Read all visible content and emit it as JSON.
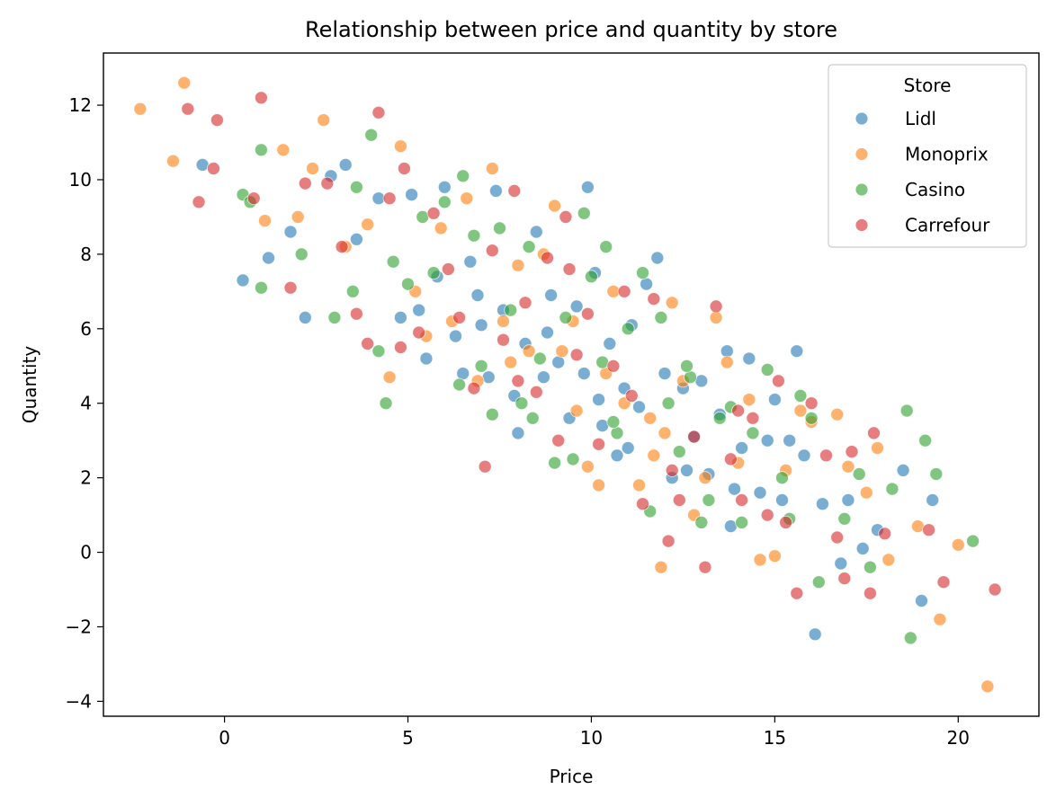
{
  "chart_data": {
    "type": "scatter",
    "title": "Relationship between price and quantity by store",
    "xlabel": "Price",
    "ylabel": "Quantity",
    "xlim": [
      -3.3,
      22.2
    ],
    "ylim": [
      -4.4,
      13.4
    ],
    "xticks": [
      0,
      5,
      10,
      15,
      20
    ],
    "yticks": [
      -4,
      -2,
      0,
      2,
      4,
      6,
      8,
      10,
      12
    ],
    "xtick_labels": [
      "0",
      "5",
      "10",
      "15",
      "20"
    ],
    "ytick_labels": [
      "−4",
      "−2",
      "0",
      "2",
      "4",
      "6",
      "8",
      "10",
      "12"
    ],
    "grid": false,
    "legend": {
      "title": "Store",
      "placement": "top-right"
    },
    "series": [
      {
        "name": "Lidl",
        "color": "#1f77b4",
        "points": [
          [
            -0.6,
            10.4
          ],
          [
            0.5,
            7.3
          ],
          [
            1.2,
            7.9
          ],
          [
            1.8,
            8.6
          ],
          [
            2.2,
            6.3
          ],
          [
            2.9,
            10.1
          ],
          [
            3.3,
            10.4
          ],
          [
            3.6,
            8.4
          ],
          [
            4.2,
            9.5
          ],
          [
            4.8,
            6.3
          ],
          [
            5.1,
            9.6
          ],
          [
            5.3,
            6.5
          ],
          [
            5.5,
            5.2
          ],
          [
            5.8,
            7.4
          ],
          [
            6.0,
            9.8
          ],
          [
            6.3,
            5.8
          ],
          [
            6.5,
            4.8
          ],
          [
            6.7,
            7.8
          ],
          [
            7.0,
            6.1
          ],
          [
            7.2,
            4.7
          ],
          [
            7.4,
            9.7
          ],
          [
            7.6,
            6.5
          ],
          [
            7.9,
            4.2
          ],
          [
            8.0,
            3.2
          ],
          [
            8.2,
            5.6
          ],
          [
            8.5,
            8.6
          ],
          [
            8.7,
            4.7
          ],
          [
            8.9,
            6.9
          ],
          [
            9.1,
            5.1
          ],
          [
            9.4,
            3.6
          ],
          [
            9.6,
            6.6
          ],
          [
            9.8,
            4.8
          ],
          [
            9.9,
            9.8
          ],
          [
            10.1,
            7.5
          ],
          [
            10.3,
            3.4
          ],
          [
            10.5,
            5.6
          ],
          [
            10.7,
            2.6
          ],
          [
            10.9,
            4.4
          ],
          [
            11.1,
            6.1
          ],
          [
            11.3,
            3.9
          ],
          [
            11.5,
            7.2
          ],
          [
            11.8,
            7.9
          ],
          [
            12.0,
            4.8
          ],
          [
            12.2,
            2.0
          ],
          [
            12.5,
            4.4
          ],
          [
            12.8,
            3.1
          ],
          [
            13.0,
            4.6
          ],
          [
            13.2,
            2.1
          ],
          [
            13.5,
            3.7
          ],
          [
            13.7,
            5.4
          ],
          [
            13.9,
            1.7
          ],
          [
            14.1,
            2.8
          ],
          [
            14.3,
            5.2
          ],
          [
            14.6,
            1.6
          ],
          [
            14.8,
            3.0
          ],
          [
            15.0,
            4.1
          ],
          [
            15.2,
            1.4
          ],
          [
            15.4,
            3.0
          ],
          [
            15.6,
            5.4
          ],
          [
            15.8,
            2.6
          ],
          [
            16.1,
            -2.2
          ],
          [
            16.3,
            1.3
          ],
          [
            16.8,
            -0.3
          ],
          [
            17.0,
            1.4
          ],
          [
            17.4,
            0.1
          ],
          [
            17.8,
            0.6
          ],
          [
            18.5,
            2.2
          ],
          [
            19.0,
            -1.3
          ],
          [
            19.3,
            1.4
          ],
          [
            13.8,
            0.7
          ],
          [
            11.0,
            2.8
          ],
          [
            12.6,
            2.2
          ],
          [
            10.2,
            4.1
          ],
          [
            8.8,
            5.9
          ],
          [
            6.9,
            6.9
          ]
        ]
      },
      {
        "name": "Monoprix",
        "color": "#ff7f0e",
        "points": [
          [
            -2.3,
            11.9
          ],
          [
            -1.4,
            10.5
          ],
          [
            -1.1,
            12.6
          ],
          [
            1.1,
            8.9
          ],
          [
            1.6,
            10.8
          ],
          [
            2.0,
            9.0
          ],
          [
            2.4,
            10.3
          ],
          [
            2.7,
            11.6
          ],
          [
            3.3,
            8.2
          ],
          [
            3.9,
            8.8
          ],
          [
            4.5,
            4.7
          ],
          [
            4.8,
            10.9
          ],
          [
            5.2,
            7.0
          ],
          [
            5.5,
            5.8
          ],
          [
            5.9,
            8.7
          ],
          [
            6.2,
            6.2
          ],
          [
            6.6,
            9.5
          ],
          [
            6.9,
            4.6
          ],
          [
            7.3,
            10.3
          ],
          [
            7.6,
            6.2
          ],
          [
            8.0,
            7.7
          ],
          [
            8.3,
            5.4
          ],
          [
            8.7,
            8.0
          ],
          [
            9.0,
            9.3
          ],
          [
            9.2,
            5.4
          ],
          [
            9.6,
            3.8
          ],
          [
            9.9,
            2.3
          ],
          [
            10.2,
            1.8
          ],
          [
            10.6,
            7.0
          ],
          [
            10.9,
            4.0
          ],
          [
            11.3,
            1.8
          ],
          [
            11.6,
            3.6
          ],
          [
            11.9,
            -0.4
          ],
          [
            12.2,
            6.7
          ],
          [
            12.5,
            4.6
          ],
          [
            12.8,
            1.0
          ],
          [
            13.1,
            2.0
          ],
          [
            13.4,
            6.3
          ],
          [
            13.7,
            5.1
          ],
          [
            14.0,
            2.4
          ],
          [
            14.3,
            4.1
          ],
          [
            14.6,
            -0.2
          ],
          [
            15.0,
            -0.1
          ],
          [
            15.3,
            2.2
          ],
          [
            15.7,
            3.8
          ],
          [
            16.0,
            3.5
          ],
          [
            16.7,
            3.7
          ],
          [
            17.0,
            2.3
          ],
          [
            17.5,
            1.6
          ],
          [
            17.8,
            2.8
          ],
          [
            18.1,
            -0.2
          ],
          [
            18.9,
            0.7
          ],
          [
            19.5,
            -1.8
          ],
          [
            20.0,
            0.2
          ],
          [
            20.8,
            -3.6
          ],
          [
            12.0,
            3.2
          ],
          [
            9.5,
            6.2
          ],
          [
            7.8,
            5.1
          ],
          [
            10.4,
            4.8
          ],
          [
            11.7,
            2.6
          ]
        ]
      },
      {
        "name": "Casino",
        "color": "#2ca02c",
        "points": [
          [
            0.5,
            9.6
          ],
          [
            0.7,
            9.4
          ],
          [
            1.0,
            10.8
          ],
          [
            1.0,
            7.1
          ],
          [
            2.1,
            8.0
          ],
          [
            3.0,
            6.3
          ],
          [
            3.5,
            7.0
          ],
          [
            3.6,
            9.8
          ],
          [
            4.0,
            11.2
          ],
          [
            4.2,
            5.4
          ],
          [
            4.4,
            4.0
          ],
          [
            4.6,
            7.8
          ],
          [
            5.0,
            7.2
          ],
          [
            5.4,
            9.0
          ],
          [
            5.7,
            7.5
          ],
          [
            6.0,
            9.4
          ],
          [
            6.4,
            4.5
          ],
          [
            6.5,
            10.1
          ],
          [
            6.8,
            8.5
          ],
          [
            7.0,
            5.0
          ],
          [
            7.3,
            3.7
          ],
          [
            7.5,
            8.7
          ],
          [
            7.8,
            6.5
          ],
          [
            8.1,
            4.0
          ],
          [
            8.4,
            3.6
          ],
          [
            8.6,
            5.2
          ],
          [
            9.0,
            2.4
          ],
          [
            9.3,
            6.3
          ],
          [
            9.5,
            2.5
          ],
          [
            9.8,
            9.1
          ],
          [
            10.0,
            7.4
          ],
          [
            10.3,
            5.1
          ],
          [
            10.4,
            8.2
          ],
          [
            10.7,
            3.2
          ],
          [
            11.0,
            6.0
          ],
          [
            11.4,
            7.5
          ],
          [
            11.6,
            1.1
          ],
          [
            11.9,
            6.3
          ],
          [
            12.1,
            4.0
          ],
          [
            12.4,
            2.7
          ],
          [
            12.7,
            4.7
          ],
          [
            13.0,
            0.8
          ],
          [
            13.2,
            1.4
          ],
          [
            13.5,
            3.6
          ],
          [
            13.8,
            3.9
          ],
          [
            14.1,
            0.8
          ],
          [
            14.4,
            3.2
          ],
          [
            14.8,
            4.9
          ],
          [
            15.2,
            2.0
          ],
          [
            15.4,
            0.9
          ],
          [
            15.7,
            4.2
          ],
          [
            16.0,
            3.6
          ],
          [
            16.2,
            -0.8
          ],
          [
            16.9,
            0.9
          ],
          [
            17.3,
            2.1
          ],
          [
            17.6,
            -0.4
          ],
          [
            18.2,
            1.7
          ],
          [
            18.6,
            3.8
          ],
          [
            18.7,
            -2.3
          ],
          [
            19.1,
            3.0
          ],
          [
            19.4,
            2.1
          ],
          [
            20.4,
            0.3
          ],
          [
            12.6,
            5.0
          ],
          [
            10.6,
            3.5
          ],
          [
            8.3,
            8.2
          ]
        ]
      },
      {
        "name": "Carrefour",
        "color": "#d62728",
        "points": [
          [
            -1.0,
            11.9
          ],
          [
            -0.7,
            9.4
          ],
          [
            -0.3,
            10.3
          ],
          [
            -0.2,
            11.6
          ],
          [
            0.8,
            9.5
          ],
          [
            1.0,
            12.2
          ],
          [
            1.8,
            7.1
          ],
          [
            2.2,
            9.9
          ],
          [
            2.8,
            9.9
          ],
          [
            3.2,
            8.2
          ],
          [
            3.6,
            6.4
          ],
          [
            3.9,
            5.6
          ],
          [
            4.2,
            11.8
          ],
          [
            4.5,
            9.5
          ],
          [
            4.8,
            5.5
          ],
          [
            4.9,
            10.3
          ],
          [
            5.3,
            5.9
          ],
          [
            5.7,
            9.1
          ],
          [
            6.1,
            7.6
          ],
          [
            6.4,
            6.3
          ],
          [
            6.8,
            4.4
          ],
          [
            7.1,
            2.3
          ],
          [
            7.3,
            8.1
          ],
          [
            7.6,
            5.7
          ],
          [
            7.9,
            9.7
          ],
          [
            8.2,
            6.7
          ],
          [
            8.5,
            4.3
          ],
          [
            8.8,
            7.9
          ],
          [
            9.1,
            3.0
          ],
          [
            9.3,
            9.0
          ],
          [
            9.6,
            5.3
          ],
          [
            9.9,
            6.4
          ],
          [
            10.2,
            2.9
          ],
          [
            10.6,
            5.0
          ],
          [
            10.9,
            7.0
          ],
          [
            11.1,
            4.2
          ],
          [
            11.4,
            1.3
          ],
          [
            11.7,
            6.8
          ],
          [
            12.1,
            0.3
          ],
          [
            12.4,
            1.4
          ],
          [
            12.8,
            3.1
          ],
          [
            13.1,
            -0.4
          ],
          [
            13.4,
            6.6
          ],
          [
            13.8,
            2.5
          ],
          [
            14.1,
            1.4
          ],
          [
            14.4,
            3.6
          ],
          [
            14.8,
            1.0
          ],
          [
            15.1,
            4.6
          ],
          [
            15.3,
            0.8
          ],
          [
            15.6,
            -1.1
          ],
          [
            16.0,
            4.0
          ],
          [
            16.4,
            2.6
          ],
          [
            16.7,
            0.4
          ],
          [
            16.9,
            -0.7
          ],
          [
            17.1,
            2.7
          ],
          [
            17.6,
            -1.1
          ],
          [
            17.7,
            3.2
          ],
          [
            18.0,
            0.5
          ],
          [
            19.2,
            0.6
          ],
          [
            19.6,
            -0.8
          ],
          [
            21.0,
            -1.0
          ],
          [
            14.0,
            3.8
          ],
          [
            12.2,
            2.2
          ],
          [
            9.4,
            7.6
          ],
          [
            8.0,
            4.6
          ]
        ]
      }
    ]
  }
}
